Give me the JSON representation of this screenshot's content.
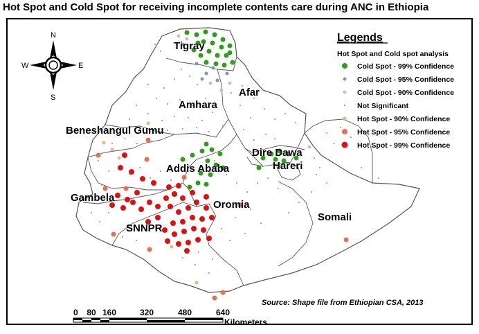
{
  "title": "Hot Spot and Cold Spot for receiving incomplete contents care during ANC in Ethiopia",
  "compass": {
    "n": "N",
    "e": "E",
    "s": "S",
    "w": "W"
  },
  "legend": {
    "heading": "Legends",
    "subheading": "Hot Spot and Cold spot analysis",
    "items": [
      {
        "label": "Cold Spot - 99% Confidence",
        "color": "#2e9e1c"
      },
      {
        "label": "Cold Spot - 95% Confidence",
        "color": "#7f96b0"
      },
      {
        "label": "Cold Spot - 90% Confidence",
        "color": "#c2c2c2"
      },
      {
        "label": "Not Significant",
        "color": "#9a9a9a"
      },
      {
        "label": "Hot Spot - 90% Confidence",
        "color": "#f2b27a"
      },
      {
        "label": "Hot Spot - 95% Confidence",
        "color": "#e8704e"
      },
      {
        "label": "Hot Spot - 99% Confidence",
        "color": "#e01010"
      }
    ]
  },
  "regions": {
    "tigray": "Tigray",
    "afar": "Afar",
    "amhara": "Amhara",
    "beneshangul": "Beneshangul Gumu",
    "dire_dawa": "Dire Dawa",
    "hareri": "Hareri",
    "addis": "Addis Ababa",
    "gambela": "Gambela",
    "oromia": "Oromia",
    "snnpr": "SNNPR",
    "somali": "Somali"
  },
  "source": "Source: Shape file from Ethiopian CSA, 2013",
  "scale": {
    "ticks": [
      "0",
      "80",
      "160",
      "320",
      "480",
      "640"
    ],
    "unit": "Kilometers"
  }
}
